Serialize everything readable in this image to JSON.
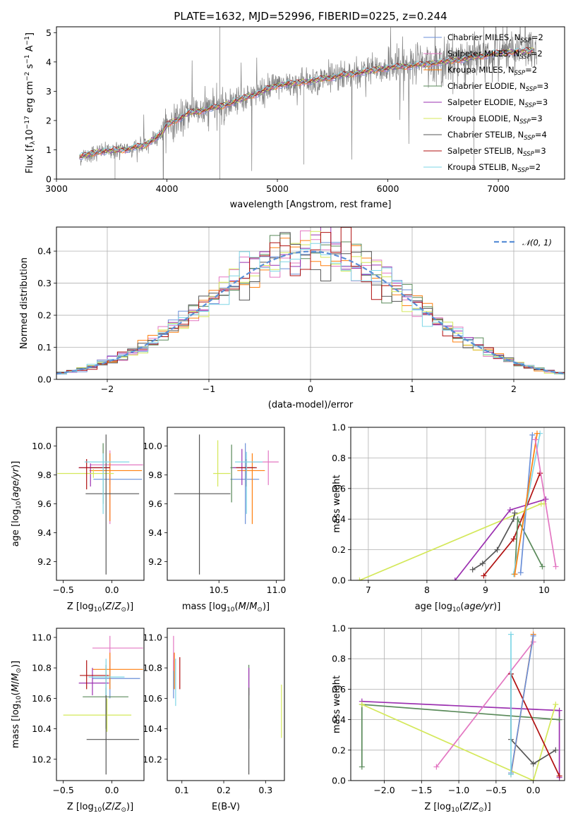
{
  "title": "PLATE=1632, MJD=52996, FIBERID=0225, z=0.244",
  "colors": {
    "chabrier_miles": "#6a8fd8",
    "salpeter_miles": "#e377c2",
    "kroupa_miles": "#ff7f0e",
    "chabrier_elodie": "#5a8a5a",
    "salpeter_elodie": "#9b30b0",
    "kroupa_elodie": "#d4e85a",
    "chabrier_stelib": "#555555",
    "salpeter_stelib": "#b01010",
    "kroupa_stelib": "#7ed6e6",
    "data": "#808080",
    "normal": "#5b8fd6"
  },
  "legend": [
    {
      "label": "Chabrier MILES, N",
      "sub": "SSP",
      "suffix": "=2",
      "color": "chabrier_miles"
    },
    {
      "label": "Salpeter MILES, N",
      "sub": "SSP",
      "suffix": "=2",
      "color": "salpeter_miles"
    },
    {
      "label": "Kroupa MILES, N",
      "sub": "SSP",
      "suffix": "=2",
      "color": "kroupa_miles"
    },
    {
      "label": "Chabrier ELODIE, N",
      "sub": "SSP",
      "suffix": "=3",
      "color": "chabrier_elodie"
    },
    {
      "label": "Salpeter ELODIE, N",
      "sub": "SSP",
      "suffix": "=3",
      "color": "salpeter_elodie"
    },
    {
      "label": "Kroupa ELODIE, N",
      "sub": "SSP",
      "suffix": "=3",
      "color": "kroupa_elodie"
    },
    {
      "label": "Chabrier STELIB, N",
      "sub": "SSP",
      "suffix": "=4",
      "color": "chabrier_stelib"
    },
    {
      "label": "Salpeter STELIB, N",
      "sub": "SSP",
      "suffix": "=3",
      "color": "salpeter_stelib"
    },
    {
      "label": "Kroupa STELIB, N",
      "sub": "SSP",
      "suffix": "=2",
      "color": "kroupa_stelib"
    }
  ],
  "chart_data": [
    {
      "type": "line",
      "xlabel": "wavelength [Angstrom, rest frame]",
      "ylabel": "Flux [f_λ10^-17 erg cm^-2 s^-1 A^-1]",
      "xlim": [
        3000,
        7600
      ],
      "ylim": [
        0,
        5.2
      ],
      "xticks": [
        3000,
        4000,
        5000,
        6000,
        7000
      ],
      "yticks": [
        0,
        1,
        2,
        3,
        4,
        5
      ],
      "grid": false,
      "legend_position": "right",
      "continuum": {
        "x": [
          3200,
          3400,
          3600,
          3800,
          3950,
          4000,
          4200,
          4500,
          4800,
          5000,
          5300,
          5600,
          6000,
          6300,
          6600,
          7000,
          7350
        ],
        "y": [
          0.75,
          0.95,
          1.0,
          1.15,
          1.55,
          1.85,
          2.25,
          2.5,
          2.9,
          3.2,
          3.35,
          3.55,
          3.8,
          3.9,
          4.05,
          4.3,
          4.4
        ]
      }
    },
    {
      "type": "bar",
      "xlabel": "(data-model)/error",
      "ylabel": "Normed distribution",
      "xlim": [
        -2.5,
        2.5
      ],
      "ylim": [
        0,
        0.475
      ],
      "xticks": [
        -2,
        -1,
        0,
        1,
        2
      ],
      "yticks": [
        0,
        0.1,
        0.2,
        0.3,
        0.4
      ],
      "grid": true,
      "legend": "𝒩(0, 1)",
      "legend_position": "top-right"
    },
    {
      "type": "scatter",
      "xlabel": "Z [log10(Z/Z⊙)]",
      "ylabel": "age [log10(age/yr)]",
      "xlim": [
        -0.57,
        0.33
      ],
      "ylim": [
        9.07,
        10.13
      ],
      "xticks": [
        -0.5,
        0.0
      ],
      "yticks": [
        9.2,
        9.4,
        9.6,
        9.8,
        10.0
      ],
      "points": [
        {
          "c": "chabrier_miles",
          "x": -0.02,
          "y": 9.77,
          "ex": [
            -0.19,
            0.31
          ],
          "ey": [
            9.73,
            9.81
          ]
        },
        {
          "c": "salpeter_miles",
          "x": -0.02,
          "y": 9.87,
          "ex": [
            -0.22,
            0.32
          ],
          "ey": [
            9.46,
            9.97
          ]
        },
        {
          "c": "kroupa_miles",
          "x": -0.02,
          "y": 9.83,
          "ex": [
            -0.23,
            0.31
          ],
          "ey": [
            9.48,
            9.95
          ]
        },
        {
          "c": "chabrier_elodie",
          "x": -0.09,
          "y": 9.85,
          "ex": [
            -0.22,
            -0.03
          ],
          "ey": [
            9.6,
            10.02
          ]
        },
        {
          "c": "salpeter_elodie",
          "x": -0.22,
          "y": 9.85,
          "ex": [
            -0.34,
            -0.02
          ],
          "ey": [
            9.72,
            9.88
          ]
        },
        {
          "c": "kroupa_elodie",
          "x": -0.19,
          "y": 9.81,
          "ex": [
            -0.56,
            0.02
          ],
          "ey": [
            9.78,
            9.84
          ]
        },
        {
          "c": "chabrier_stelib",
          "x": -0.06,
          "y": 9.67,
          "ex": [
            -0.27,
            0.28
          ],
          "ey": [
            9.11,
            10.08
          ]
        },
        {
          "c": "salpeter_stelib",
          "x": -0.26,
          "y": 9.85,
          "ex": [
            -0.34,
            -0.02
          ],
          "ey": [
            9.7,
            9.91
          ]
        },
        {
          "c": "kroupa_stelib",
          "x": -0.09,
          "y": 9.89,
          "ex": [
            -0.28,
            0.18
          ],
          "ey": [
            9.53,
            9.95
          ]
        }
      ]
    },
    {
      "type": "scatter",
      "xlabel": "mass [log10(M/M⊙)]",
      "ylabel": "",
      "xlim": [
        10.05,
        11.07
      ],
      "ylim": [
        9.07,
        10.13
      ],
      "xticks": [
        10.5,
        11.0
      ],
      "yticks": [
        9.2,
        9.4,
        9.6,
        9.8,
        10.0
      ],
      "points": [
        {
          "c": "chabrier_miles",
          "x": 10.73,
          "y": 9.77,
          "ex": [
            10.6,
            10.85
          ],
          "ey": [
            9.46,
            10.02
          ]
        },
        {
          "c": "salpeter_miles",
          "x": 10.93,
          "y": 9.89,
          "ex": [
            10.78,
            11.02
          ],
          "ey": [
            9.73,
            9.97
          ]
        },
        {
          "c": "kroupa_miles",
          "x": 10.79,
          "y": 9.83,
          "ex": [
            10.66,
            10.9
          ],
          "ey": [
            9.46,
            9.95
          ]
        },
        {
          "c": "chabrier_elodie",
          "x": 10.61,
          "y": 9.85,
          "ex": [
            10.6,
            10.82
          ],
          "ey": [
            9.61,
            10.01
          ]
        },
        {
          "c": "salpeter_elodie",
          "x": 10.7,
          "y": 9.85,
          "ex": [
            10.62,
            10.8
          ],
          "ey": [
            9.73,
            9.98
          ]
        },
        {
          "c": "kroupa_elodie",
          "x": 10.49,
          "y": 9.81,
          "ex": [
            10.45,
            10.6
          ],
          "ey": [
            9.72,
            10.04
          ]
        },
        {
          "c": "chabrier_stelib",
          "x": 10.33,
          "y": 9.67,
          "ex": [
            10.11,
            10.6
          ],
          "ey": [
            9.11,
            10.08
          ]
        },
        {
          "c": "salpeter_stelib",
          "x": 10.74,
          "y": 9.85,
          "ex": [
            10.65,
            10.83
          ],
          "ey": [
            9.72,
            9.91
          ]
        },
        {
          "c": "kroupa_stelib",
          "x": 10.74,
          "y": 9.89,
          "ex": [
            10.64,
            10.88
          ],
          "ey": [
            9.53,
            9.96
          ]
        }
      ]
    },
    {
      "type": "line",
      "xlabel": "age [log10(age/yr)]",
      "ylabel": "mass weight",
      "xlim": [
        6.7,
        10.35
      ],
      "ylim": [
        0,
        1
      ],
      "xticks": [
        7,
        8,
        9,
        10
      ],
      "yticks": [
        0.0,
        0.2,
        0.4,
        0.6,
        0.8,
        1.0
      ],
      "grid": true,
      "series": [
        {
          "c": "kroupa_elodie",
          "x": [
            6.85,
            9.95,
            10.0
          ],
          "y": [
            0.0,
            0.5,
            0.5
          ]
        },
        {
          "c": "salpeter_elodie",
          "x": [
            8.48,
            9.42,
            10.03
          ],
          "y": [
            0.0,
            0.46,
            0.53
          ]
        },
        {
          "c": "chabrier_stelib",
          "x": [
            8.78,
            8.95,
            9.2,
            9.48,
            9.5
          ],
          "y": [
            0.07,
            0.11,
            0.2,
            0.4,
            0.44
          ]
        },
        {
          "c": "salpeter_stelib",
          "x": [
            8.97,
            9.48,
            9.93
          ],
          "y": [
            0.03,
            0.27,
            0.7
          ]
        },
        {
          "c": "chabrier_elodie",
          "x": [
            9.5,
            9.55,
            9.97
          ],
          "y": [
            0.04,
            0.4,
            0.09
          ]
        },
        {
          "c": "chabrier_miles",
          "x": [
            9.6,
            9.8
          ],
          "y": [
            0.05,
            0.95
          ]
        },
        {
          "c": "kroupa_stelib",
          "x": [
            9.48,
            9.93
          ],
          "y": [
            0.04,
            0.96
          ]
        },
        {
          "c": "kroupa_miles",
          "x": [
            9.5,
            9.88
          ],
          "y": [
            0.04,
            0.96
          ]
        },
        {
          "c": "salpeter_miles",
          "x": [
            9.85,
            10.2
          ],
          "y": [
            0.92,
            0.09
          ]
        }
      ]
    },
    {
      "type": "scatter",
      "xlabel": "Z [log10(Z/Z⊙)]",
      "ylabel": "mass [log10(M/M⊙)]",
      "xlim": [
        -0.57,
        0.33
      ],
      "ylim": [
        10.06,
        11.06
      ],
      "xticks": [
        -0.5,
        0.0
      ],
      "yticks": [
        10.2,
        10.4,
        10.6,
        10.8,
        11.0
      ],
      "points": [
        {
          "c": "chabrier_miles",
          "x": -0.02,
          "y": 10.73,
          "ex": [
            -0.2,
            0.29
          ],
          "ey": [
            10.6,
            10.85
          ]
        },
        {
          "c": "salpeter_miles",
          "x": -0.02,
          "y": 10.93,
          "ex": [
            -0.2,
            0.32
          ],
          "ey": [
            10.78,
            11.01
          ]
        },
        {
          "c": "kroupa_miles",
          "x": -0.02,
          "y": 10.79,
          "ex": [
            -0.2,
            0.32
          ],
          "ey": [
            10.66,
            10.9
          ]
        },
        {
          "c": "chabrier_elodie",
          "x": -0.06,
          "y": 10.61,
          "ex": [
            -0.3,
            0.17
          ],
          "ey": [
            10.4,
            10.82
          ]
        },
        {
          "c": "salpeter_elodie",
          "x": -0.2,
          "y": 10.7,
          "ex": [
            -0.34,
            -0.03
          ],
          "ey": [
            10.62,
            10.8
          ]
        },
        {
          "c": "kroupa_elodie",
          "x": -0.05,
          "y": 10.49,
          "ex": [
            -0.5,
            0.2
          ],
          "ey": [
            10.38,
            10.6
          ]
        },
        {
          "c": "chabrier_stelib",
          "x": -0.06,
          "y": 10.33,
          "ex": [
            -0.26,
            0.28
          ],
          "ey": [
            10.1,
            10.67
          ]
        },
        {
          "c": "salpeter_stelib",
          "x": -0.26,
          "y": 10.75,
          "ex": [
            -0.33,
            -0.03
          ],
          "ey": [
            10.66,
            10.85
          ]
        },
        {
          "c": "kroupa_stelib",
          "x": -0.06,
          "y": 10.74,
          "ex": [
            -0.24,
            0.13
          ],
          "ey": [
            10.62,
            10.86
          ]
        }
      ]
    },
    {
      "type": "scatter",
      "xlabel": "E(B-V)",
      "ylabel": "",
      "xlim": [
        0.065,
        0.345
      ],
      "ylim": [
        10.06,
        11.06
      ],
      "xticks": [
        0.1,
        0.2,
        0.3
      ],
      "yticks": [
        10.2,
        10.4,
        10.6,
        10.8,
        11.0
      ],
      "points": [
        {
          "c": "chabrier_miles",
          "x": 0.08,
          "y": 10.73,
          "ex": [
            0.08,
            0.08
          ],
          "ey": [
            10.6,
            10.85
          ]
        },
        {
          "c": "salpeter_miles",
          "x": 0.08,
          "y": 10.93,
          "ex": [
            0.08,
            0.08
          ],
          "ey": [
            10.78,
            11.01
          ]
        },
        {
          "c": "kroupa_miles",
          "x": 0.082,
          "y": 10.79,
          "ex": [
            0.082,
            0.082
          ],
          "ey": [
            10.66,
            10.9
          ]
        },
        {
          "c": "chabrier_elodie",
          "x": 0.26,
          "y": 10.61,
          "ex": [
            0.26,
            0.26
          ],
          "ey": [
            10.4,
            10.82
          ]
        },
        {
          "c": "salpeter_elodie",
          "x": 0.26,
          "y": 10.7,
          "ex": [
            0.26,
            0.26
          ],
          "ey": [
            10.62,
            10.8
          ]
        },
        {
          "c": "kroupa_elodie",
          "x": 0.338,
          "y": 10.49,
          "ex": [
            0.338,
            0.338
          ],
          "ey": [
            10.34,
            10.69
          ]
        },
        {
          "c": "chabrier_stelib",
          "x": 0.26,
          "y": 10.33,
          "ex": [
            0.26,
            0.26
          ],
          "ey": [
            10.1,
            10.67
          ]
        },
        {
          "c": "salpeter_stelib",
          "x": 0.095,
          "y": 10.75,
          "ex": [
            0.095,
            0.095
          ],
          "ey": [
            10.66,
            10.87
          ]
        },
        {
          "c": "kroupa_stelib",
          "x": 0.085,
          "y": 10.74,
          "ex": [
            0.085,
            0.085
          ],
          "ey": [
            10.55,
            10.86
          ]
        }
      ]
    },
    {
      "type": "line",
      "xlabel": "Z [log10(Z/Z⊙)]",
      "ylabel": "mass weight",
      "xlim": [
        -2.45,
        0.42
      ],
      "ylim": [
        0,
        1
      ],
      "xticks": [
        -2.0,
        -1.5,
        -1.0,
        -0.5,
        0.0
      ],
      "yticks": [
        0.0,
        0.2,
        0.4,
        0.6,
        0.8,
        1.0
      ],
      "grid": true,
      "series": [
        {
          "c": "salpeter_elodie",
          "x": [
            -2.3,
            0.35,
            0.35
          ],
          "y": [
            0.52,
            0.46,
            0.02
          ]
        },
        {
          "c": "chabrier_elodie",
          "x": [
            -2.3,
            -2.3,
            0.35
          ],
          "y": [
            0.09,
            0.5,
            0.4
          ]
        },
        {
          "c": "kroupa_elodie",
          "x": [
            -2.3,
            0.0,
            0.3
          ],
          "y": [
            0.5,
            0.0,
            0.5
          ]
        },
        {
          "c": "salpeter_miles",
          "x": [
            -1.3,
            0.0
          ],
          "y": [
            0.09,
            0.91
          ]
        },
        {
          "c": "chabrier_stelib",
          "x": [
            -0.3,
            -0.3,
            0.0,
            0.3
          ],
          "y": [
            0.7,
            0.27,
            0.11,
            0.2
          ]
        },
        {
          "c": "salpeter_stelib",
          "x": [
            -0.3,
            0.35
          ],
          "y": [
            0.7,
            0.03
          ]
        },
        {
          "c": "kroupa_miles",
          "x": [
            -0.3,
            0.0
          ],
          "y": [
            0.04,
            0.96
          ]
        },
        {
          "c": "chabrier_miles",
          "x": [
            -0.3,
            0.0
          ],
          "y": [
            0.05,
            0.95
          ]
        },
        {
          "c": "kroupa_stelib",
          "x": [
            -0.3,
            -0.3
          ],
          "y": [
            0.04,
            0.96
          ]
        }
      ]
    }
  ]
}
